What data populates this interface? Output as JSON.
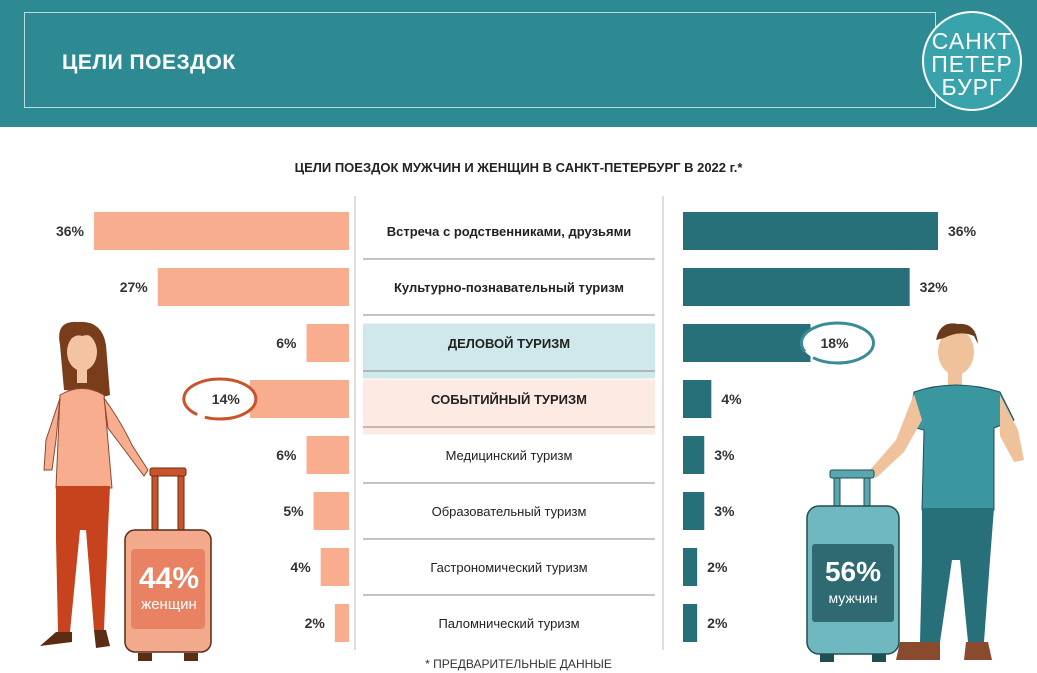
{
  "header": {
    "title": "ЦЕЛИ  ПОЕЗДОК",
    "logo_lines": [
      "САНКТ",
      "ПЕТЕР",
      "БУРГ"
    ]
  },
  "colors": {
    "header_bg": "#2d8a93",
    "women_bar": "#f8ad8f",
    "men_bar": "#276f79",
    "business_highlight": "#cfe8ec",
    "event_highlight": "#fdeae3",
    "women_circle": "#c9542c",
    "men_circle": "#3a8d96"
  },
  "chart_data": {
    "type": "bar",
    "title": "ЦЕЛИ ПОЕЗДОК МУЖЧИН И ЖЕНЩИН В САНКТ-ПЕТЕРБУРГ В 2022 г.*",
    "categories": [
      "Встреча с родственниками, друзьями",
      "Культурно-познавательный туризм",
      "ДЕЛОВОЙ ТУРИЗМ",
      "СОБЫТИЙНЫЙ ТУРИЗМ",
      "Медицинский туризм",
      "Образовательный туризм",
      "Гастрономический туризм",
      "Паломнический туризм"
    ],
    "series": [
      {
        "values": [
          36,
          27,
          6,
          14,
          6,
          5,
          4,
          2
        ]
      },
      {
        "values": [
          36,
          32,
          18,
          4,
          3,
          3,
          2,
          2
        ]
      }
    ],
    "unit": "%",
    "highlighted": {
      "women": 3,
      "men": 2
    },
    "xlim": [
      0,
      36
    ]
  },
  "women": {
    "share": "44%",
    "label": "женщин"
  },
  "men": {
    "share": "56%",
    "label": "мужчин"
  },
  "footnote": "* ПРЕДВАРИТЕЛЬНЫЕ ДАННЫЕ"
}
